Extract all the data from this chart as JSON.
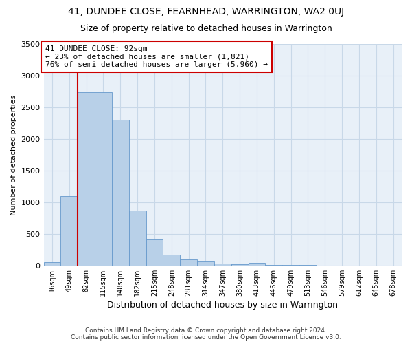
{
  "title": "41, DUNDEE CLOSE, FEARNHEAD, WARRINGTON, WA2 0UJ",
  "subtitle": "Size of property relative to detached houses in Warrington",
  "xlabel": "Distribution of detached houses by size in Warrington",
  "ylabel": "Number of detached properties",
  "bar_labels": [
    "16sqm",
    "49sqm",
    "82sqm",
    "115sqm",
    "148sqm",
    "182sqm",
    "215sqm",
    "248sqm",
    "281sqm",
    "314sqm",
    "347sqm",
    "380sqm",
    "413sqm",
    "446sqm",
    "479sqm",
    "513sqm",
    "546sqm",
    "579sqm",
    "612sqm",
    "645sqm",
    "678sqm"
  ],
  "bar_heights": [
    50,
    1100,
    2740,
    2740,
    2300,
    870,
    410,
    175,
    100,
    65,
    30,
    20,
    40,
    10,
    5,
    5,
    3,
    2,
    2,
    1,
    1
  ],
  "bar_color": "#b8d0e8",
  "bar_edgecolor": "#6699cc",
  "bar_width": 1.0,
  "ylim": [
    0,
    3500
  ],
  "yticks": [
    0,
    500,
    1000,
    1500,
    2000,
    2500,
    3000,
    3500
  ],
  "red_line_x": 1.5,
  "annotation_title": "41 DUNDEE CLOSE: 92sqm",
  "annotation_line1": "← 23% of detached houses are smaller (1,821)",
  "annotation_line2": "76% of semi-detached houses are larger (5,960) →",
  "annotation_box_color": "#ffffff",
  "annotation_border_color": "#cc0000",
  "red_line_color": "#cc0000",
  "grid_color": "#c8d8e8",
  "background_color": "#e8f0f8",
  "footer_line1": "Contains HM Land Registry data © Crown copyright and database right 2024.",
  "footer_line2": "Contains public sector information licensed under the Open Government Licence v3.0."
}
